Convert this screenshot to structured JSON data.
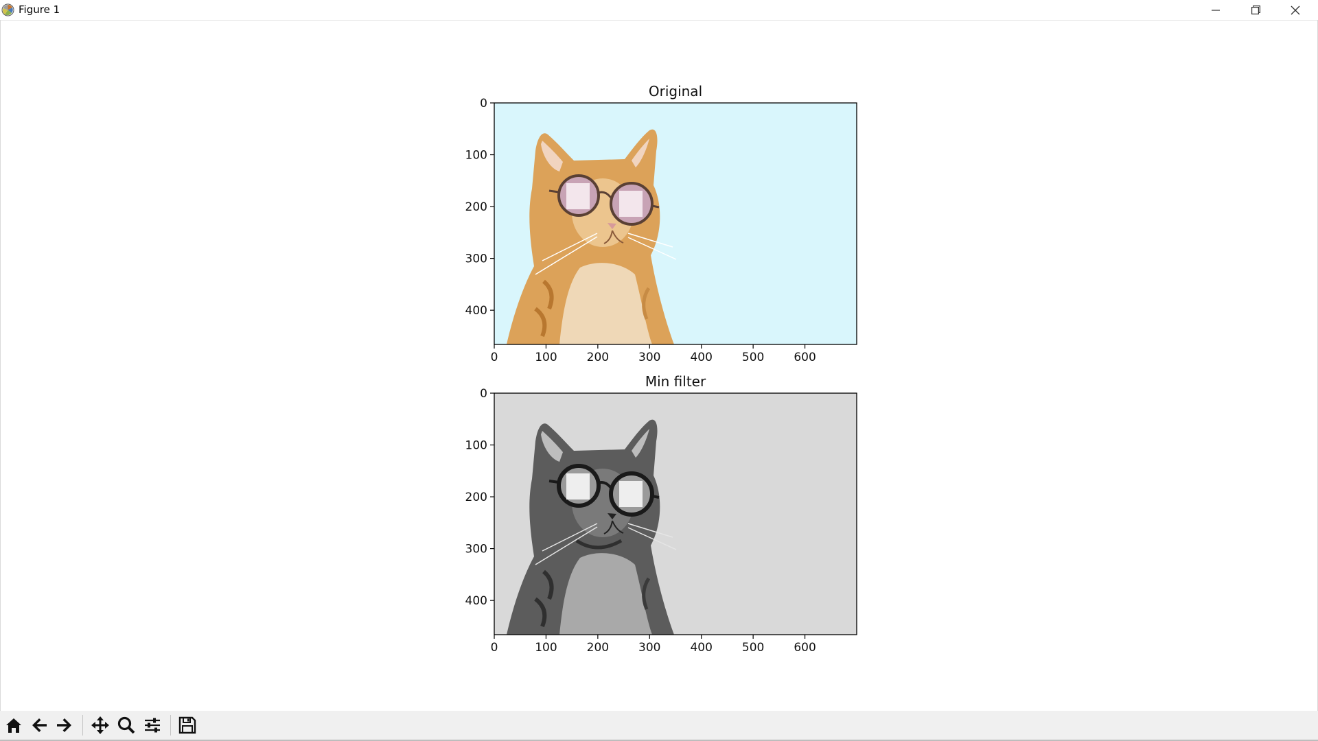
{
  "window": {
    "title": "Figure 1",
    "controls": [
      "minimize",
      "restore",
      "close"
    ]
  },
  "chart_data": [
    {
      "type": "image",
      "title": "Original",
      "xticks": [
        0,
        100,
        200,
        300,
        400,
        500,
        600
      ],
      "yticks": [
        0,
        100,
        200,
        300,
        400
      ],
      "xlim": [
        0,
        700
      ],
      "ylim": [
        466,
        0
      ],
      "content": "cat-with-sunglasses-color",
      "background_color": "#d9f6fc",
      "grid": false
    },
    {
      "type": "image",
      "title": "Min filter",
      "xticks": [
        0,
        100,
        200,
        300,
        400,
        500,
        600
      ],
      "yticks": [
        0,
        100,
        200,
        300,
        400
      ],
      "xlim": [
        0,
        700
      ],
      "ylim": [
        466,
        0
      ],
      "content": "cat-with-sunglasses-grayscale",
      "background_color": "#d9d9d9",
      "grid": false
    }
  ],
  "toolbar": {
    "buttons": [
      {
        "name": "home",
        "icon": "home-icon"
      },
      {
        "name": "back",
        "icon": "arrow-left-icon"
      },
      {
        "name": "forward",
        "icon": "arrow-right-icon"
      },
      {
        "name": "pan",
        "icon": "move-icon"
      },
      {
        "name": "zoom",
        "icon": "magnifier-icon"
      },
      {
        "name": "configure-subplots",
        "icon": "sliders-icon"
      },
      {
        "name": "save",
        "icon": "floppy-disk-icon"
      }
    ]
  }
}
